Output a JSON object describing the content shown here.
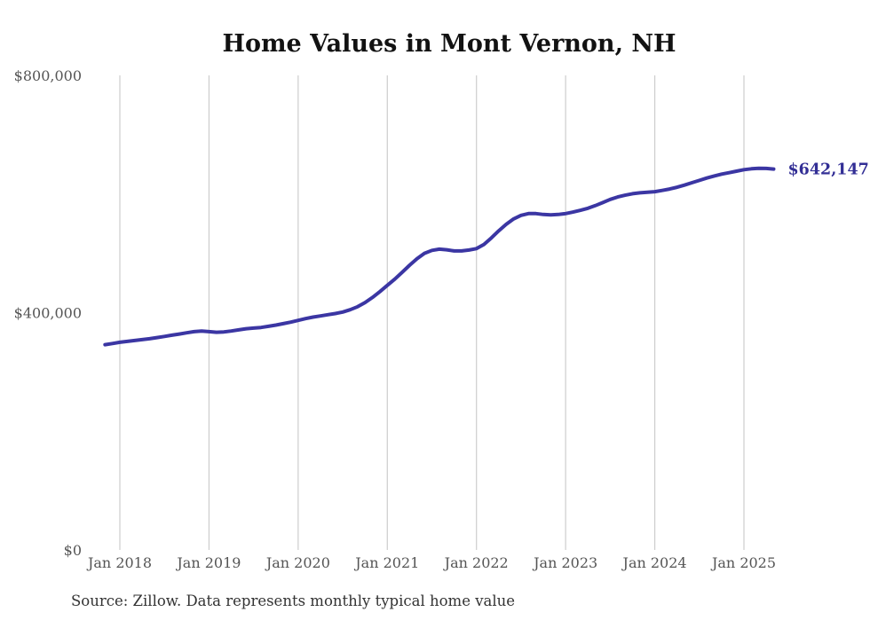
{
  "chart_data": {
    "type": "line",
    "title": "Home Values in Mont Vernon, NH",
    "series_name": "Monthly typical home value",
    "x_start_month": "2017-11",
    "x_end_month": "2025-05",
    "x_tick_labels": [
      "Jan 2018",
      "Jan 2019",
      "Jan 2020",
      "Jan 2021",
      "Jan 2022",
      "Jan 2023",
      "Jan 2024",
      "Jan 2025"
    ],
    "y_ticks": [
      {
        "label": "$0",
        "value": 0
      },
      {
        "label": "$400,000",
        "value": 400000
      },
      {
        "label": "$800,000",
        "value": 800000
      }
    ],
    "ylim": [
      0,
      800000
    ],
    "grid": "vertical-only",
    "legend": "none",
    "monthly_values": [
      346000,
      348000,
      350000,
      351500,
      353000,
      354500,
      356000,
      358000,
      360000,
      362000,
      364000,
      366000,
      368000,
      369000,
      368000,
      367000,
      367500,
      369000,
      371000,
      373000,
      374000,
      375000,
      377000,
      379000,
      381500,
      384000,
      387000,
      390000,
      392500,
      394500,
      396500,
      398500,
      401000,
      405000,
      410000,
      417000,
      425500,
      435500,
      446000,
      456500,
      468000,
      480000,
      491000,
      500000,
      505000,
      507000,
      506000,
      504000,
      504000,
      505500,
      508000,
      515000,
      526000,
      538000,
      549000,
      558000,
      564000,
      567000,
      567000,
      565500,
      565000,
      565500,
      567000,
      569500,
      572500,
      576000,
      580500,
      585500,
      591000,
      595000,
      598000,
      600500,
      602000,
      603000,
      604000,
      606000,
      608500,
      611500,
      615000,
      619000,
      623000,
      627000,
      630500,
      633500,
      636000,
      638500,
      641000,
      642500,
      643500,
      643200,
      642147
    ],
    "latest_value": 642147,
    "latest_value_label": "$642,147",
    "source_note": "Source: Zillow. Data represents monthly typical home value",
    "colors": {
      "line": "#3b36a3",
      "latest_label": "#322e95",
      "title": "#121212",
      "axis_labels": "#555555",
      "source_note": "#333333",
      "gridline": "#cdcdcd",
      "background": "#ffffff"
    }
  }
}
